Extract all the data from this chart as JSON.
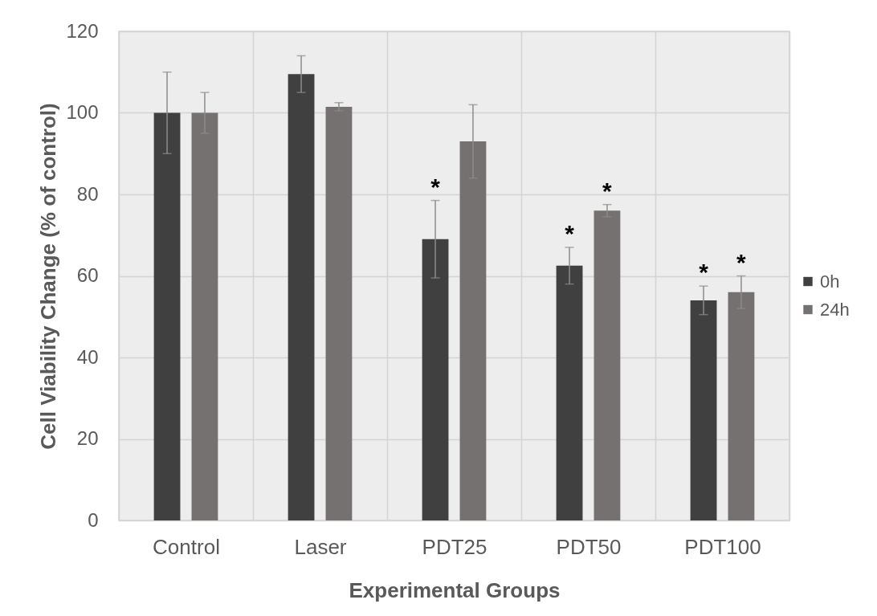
{
  "chart_data": {
    "type": "bar",
    "xlabel": "Experimental Groups",
    "ylabel": "Cell Viability Change (% of control)",
    "categories": [
      "Control",
      "Laser",
      "PDT25",
      "PDT50",
      "PDT100"
    ],
    "series": [
      {
        "name": "0h",
        "color": "#404040",
        "values": [
          100,
          109.5,
          69,
          62.5,
          54
        ],
        "errors": [
          10,
          4.5,
          9.5,
          4.5,
          3.5
        ],
        "value_labels": [
          null,
          null,
          "*",
          "*",
          "*"
        ]
      },
      {
        "name": "24h",
        "color": "#767171",
        "values": [
          100,
          101.5,
          93,
          76,
          56
        ],
        "errors": [
          5,
          1,
          9,
          1.5,
          4
        ],
        "value_labels": [
          null,
          null,
          null,
          "*",
          "*"
        ]
      }
    ],
    "ylim": [
      0,
      120
    ],
    "yticks": [
      0,
      20,
      40,
      60,
      80,
      100,
      120
    ],
    "grid": true,
    "legend": "right"
  }
}
